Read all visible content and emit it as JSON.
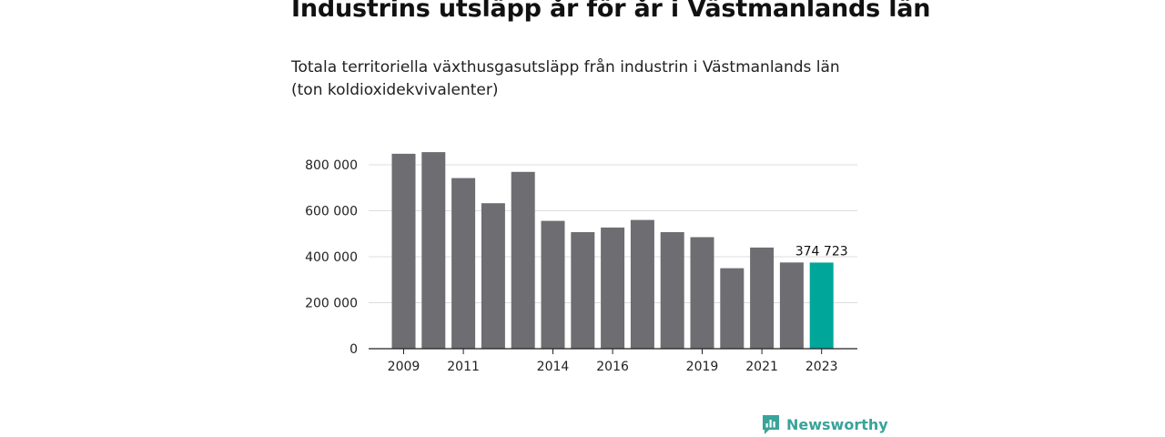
{
  "title": "Industrins utsläpp år för år i Västmanlands län",
  "subtitle_line1": "Totala territoriella växthusgasutsläpp från industrin i Västmanlands län",
  "subtitle_line2": "(ton koldioxidekvivalenter)",
  "brand": {
    "name": "Newsworthy",
    "color": "#3aa39a"
  },
  "chart_data": {
    "type": "bar",
    "categories": [
      "2009",
      "2010",
      "2011",
      "2012",
      "2013",
      "2014",
      "2015",
      "2016",
      "2017",
      "2018",
      "2019",
      "2020",
      "2021",
      "2022",
      "2023"
    ],
    "values": [
      848000,
      855000,
      742000,
      633000,
      769000,
      556000,
      507000,
      527000,
      560000,
      507000,
      485000,
      350000,
      440000,
      375000,
      374723
    ],
    "x_tick_labels": [
      "2009",
      "2011",
      "2014",
      "2016",
      "2019",
      "2021",
      "2023"
    ],
    "y_ticks": [
      0,
      200000,
      400000,
      600000,
      800000
    ],
    "y_tick_labels": [
      "0",
      "200 000",
      "400 000",
      "600 000",
      "800 000"
    ],
    "ylim": [
      0,
      860000
    ],
    "highlight_label": "374 723",
    "colors": {
      "bar": "#6e6d72",
      "highlight": "#00a69a",
      "grid": "#dddddd",
      "axis": "#222222"
    },
    "grid": true
  }
}
